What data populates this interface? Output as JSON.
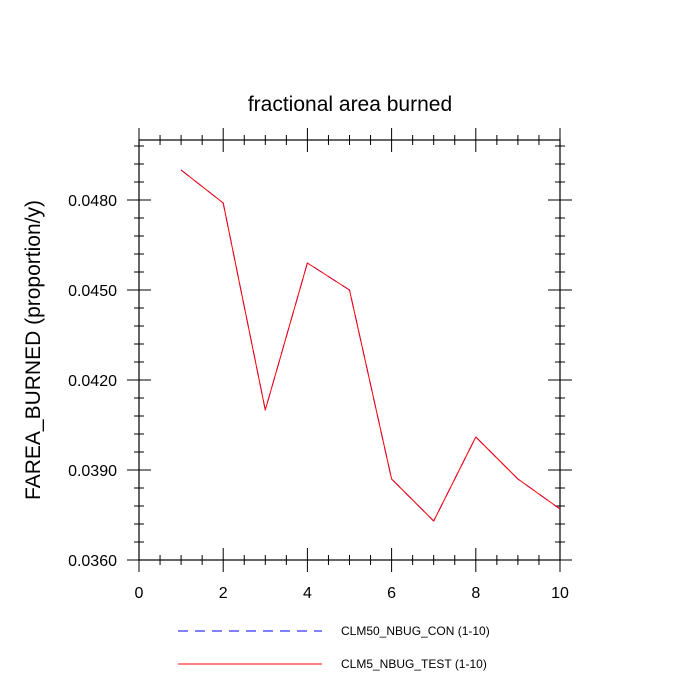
{
  "chart_data": {
    "type": "line",
    "title": "fractional area burned",
    "xlabel": "",
    "ylabel": "FAREA_BURNED  (proportion/y)",
    "xlim": [
      0,
      10
    ],
    "ylim": [
      0.036,
      0.05
    ],
    "x_ticks": [
      0,
      2,
      4,
      6,
      8,
      10
    ],
    "x_tick_labels": [
      "0",
      "2",
      "4",
      "6",
      "8",
      "10"
    ],
    "y_ticks": [
      0.036,
      0.039,
      0.042,
      0.045,
      0.048
    ],
    "y_tick_labels": [
      "0.0360",
      "0.0390",
      "0.0420",
      "0.0450",
      "0.0480"
    ],
    "grid": false,
    "legend_position": "bottom",
    "x": [
      1,
      2,
      3,
      4,
      5,
      6,
      7,
      8,
      9,
      10
    ],
    "series": [
      {
        "name": "CLM50_NBUG_CON (1-10)",
        "color": "#0000ff",
        "dash": "dashed",
        "values": [
          0.049,
          0.0479,
          0.041,
          0.0459,
          0.045,
          0.0387,
          0.0373,
          0.0401,
          0.0387,
          0.0377
        ]
      },
      {
        "name": "CLM5_NBUG_TEST (1-10)",
        "color": "#ff0000",
        "dash": "solid",
        "values": [
          0.049,
          0.0479,
          0.041,
          0.0459,
          0.045,
          0.0387,
          0.0373,
          0.0401,
          0.0387,
          0.0377
        ]
      }
    ]
  }
}
